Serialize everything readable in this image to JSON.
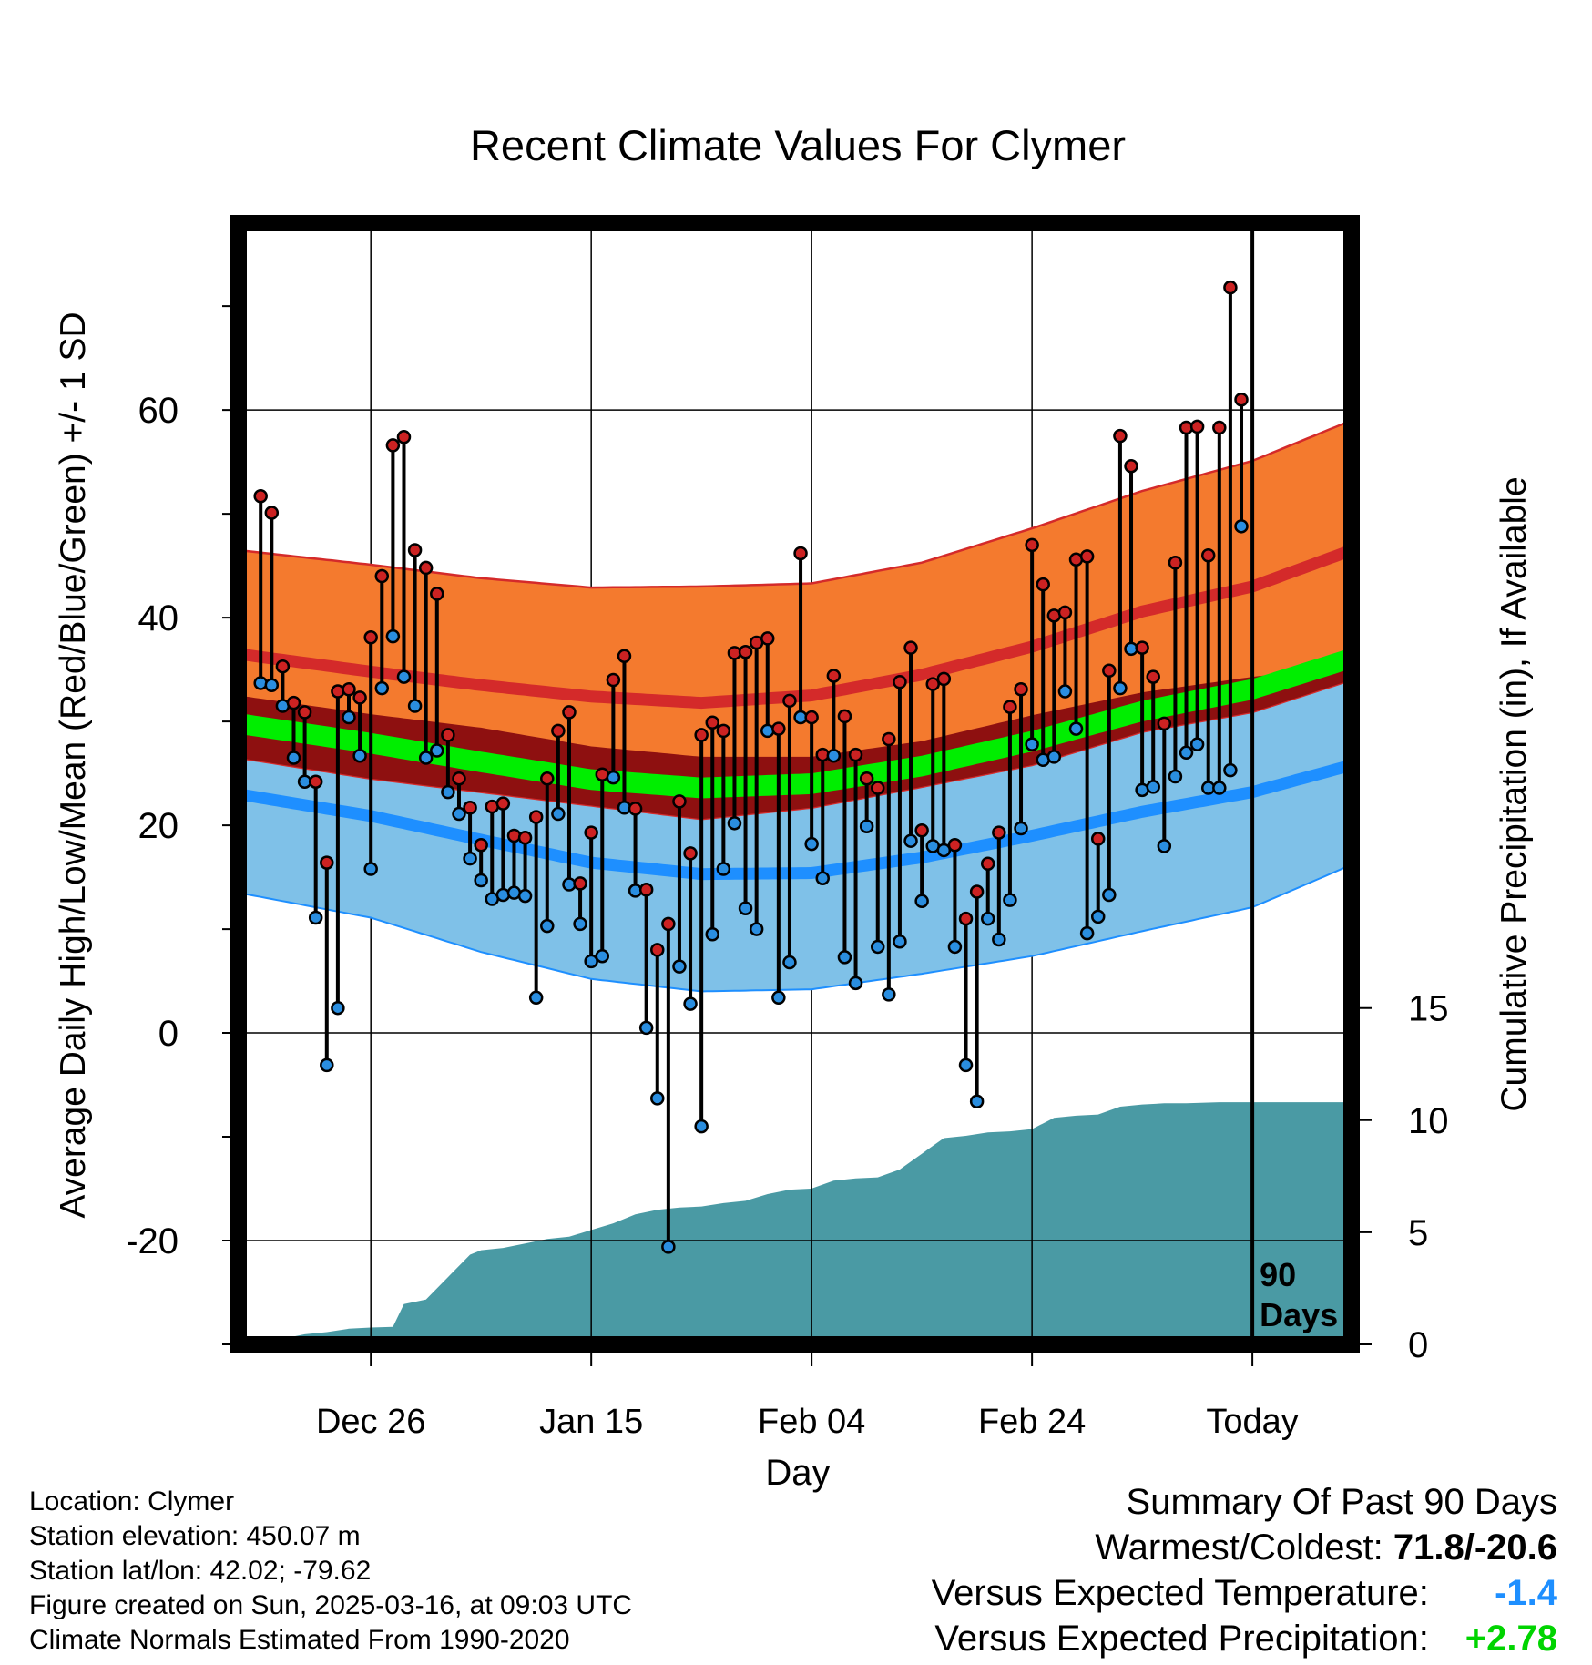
{
  "chart_data": {
    "type": "line",
    "title": "Recent Climate Values For Clymer",
    "xlabel": "Day",
    "ylabel": "Average Daily High/Low/Mean (Red/Blue/Green) +/- 1 SD",
    "y2label": "Cumulative Precipitation (in), If Available",
    "ylim": [
      -30,
      78
    ],
    "y2lim": [
      0,
      50
    ],
    "xlim": [
      -92,
      9
    ],
    "x_unit": "days relative to Today (Mar 16)",
    "x_ticks": [
      {
        "x": -80,
        "label": "Dec 26"
      },
      {
        "x": -60,
        "label": "Jan 15"
      },
      {
        "x": -40,
        "label": "Feb 04"
      },
      {
        "x": -20,
        "label": "Feb 24"
      },
      {
        "x": 0,
        "label": "Today"
      }
    ],
    "y_ticks": [
      -20,
      0,
      20,
      40,
      60
    ],
    "y2_ticks": [
      0,
      5,
      10,
      15
    ],
    "marker_label": "90 Days",
    "marker_x": 0,
    "grid": true,
    "highs": [
      51.7,
      50.1,
      35.3,
      31.8,
      30.9,
      24.2,
      16.4,
      32.9,
      33.1,
      32.3,
      38.1,
      44.0,
      56.6,
      57.4,
      46.5,
      44.8,
      42.3,
      28.7,
      24.5,
      21.7,
      18.1,
      21.8,
      22.1,
      19.0,
      18.8,
      20.8,
      24.5,
      29.1,
      30.9,
      14.4,
      19.3,
      24.9,
      34.0,
      36.3,
      21.6,
      13.8,
      8.0,
      10.5,
      22.3,
      17.3,
      28.7,
      29.9,
      29.1,
      36.6,
      36.7,
      37.6,
      38.0,
      29.3,
      32.0,
      46.2,
      30.4,
      26.8,
      34.4,
      30.5,
      26.8,
      24.5,
      23.6,
      28.3,
      33.8,
      37.1,
      19.5,
      33.6,
      34.1,
      18.1,
      11.0,
      13.6,
      16.3,
      19.3,
      31.4,
      33.1,
      47.0,
      43.2,
      40.2,
      40.5,
      45.6,
      45.9,
      18.7,
      34.9,
      57.5,
      54.6,
      37.1,
      34.3,
      29.8,
      45.3,
      58.3,
      58.4,
      46.0,
      58.3,
      71.8,
      61.0
    ],
    "lows": [
      33.7,
      33.5,
      31.5,
      26.5,
      24.2,
      11.1,
      -3.1,
      2.4,
      30.4,
      26.7,
      15.8,
      33.2,
      38.2,
      34.3,
      31.5,
      26.5,
      27.2,
      23.2,
      21.1,
      16.8,
      14.7,
      12.9,
      13.3,
      13.5,
      13.2,
      3.4,
      10.3,
      21.1,
      14.3,
      10.5,
      6.9,
      7.4,
      24.6,
      21.7,
      13.7,
      0.5,
      -6.3,
      -20.6,
      6.4,
      2.8,
      -9.0,
      9.5,
      15.8,
      20.2,
      12.0,
      10.0,
      29.1,
      3.4,
      6.8,
      30.4,
      18.2,
      14.9,
      26.7,
      7.3,
      4.8,
      19.9,
      8.3,
      3.7,
      8.8,
      18.5,
      12.7,
      18.0,
      17.6,
      8.3,
      -3.1,
      -6.6,
      11.0,
      9.0,
      12.8,
      19.7,
      27.8,
      26.3,
      26.6,
      32.9,
      29.3,
      9.6,
      11.2,
      13.3,
      33.2,
      37.0,
      23.4,
      23.7,
      18.0,
      24.7,
      27.0,
      27.8,
      23.6,
      23.6,
      25.3,
      48.8
    ],
    "series": [
      {
        "name": "Average Daily High",
        "mean": [
          [
            -92,
            36.5
          ],
          [
            -80,
            34.8
          ],
          [
            -70,
            33.5
          ],
          [
            -60,
            32.4
          ],
          [
            -50,
            31.8
          ],
          [
            -40,
            32.5
          ],
          [
            -30,
            34.5
          ],
          [
            -20,
            37.2
          ],
          [
            -10,
            40.6
          ],
          [
            0,
            43.0
          ],
          [
            9,
            46.5
          ]
        ],
        "sd": [
          [
            -92,
            10.0
          ],
          [
            -80,
            10.3
          ],
          [
            -70,
            10.3
          ],
          [
            -60,
            10.5
          ],
          [
            -50,
            11.2
          ],
          [
            -40,
            10.8
          ],
          [
            -30,
            10.8
          ],
          [
            -20,
            11.4
          ],
          [
            -10,
            11.6
          ],
          [
            0,
            12.1
          ],
          [
            9,
            12.5
          ]
        ]
      },
      {
        "name": "Average Daily Low",
        "mean": [
          [
            -92,
            23.0
          ],
          [
            -80,
            20.9
          ],
          [
            -70,
            18.6
          ],
          [
            -60,
            16.4
          ],
          [
            -50,
            15.3
          ],
          [
            -40,
            15.4
          ],
          [
            -30,
            16.9
          ],
          [
            -20,
            19.0
          ],
          [
            -10,
            21.3
          ],
          [
            0,
            23.2
          ],
          [
            9,
            25.8
          ]
        ],
        "sd": [
          [
            -92,
            9.5
          ],
          [
            -80,
            9.8
          ],
          [
            -70,
            10.8
          ],
          [
            -60,
            11.2
          ],
          [
            -50,
            11.3
          ],
          [
            -40,
            11.2
          ],
          [
            -30,
            11.2
          ],
          [
            -20,
            11.6
          ],
          [
            -10,
            11.5
          ],
          [
            0,
            11.1
          ],
          [
            9,
            9.6
          ]
        ]
      },
      {
        "name": "Average Daily Mean",
        "mean": [
          [
            -92,
            29.8
          ],
          [
            -80,
            27.9
          ],
          [
            -70,
            26.1
          ],
          [
            -60,
            24.4
          ],
          [
            -50,
            23.6
          ],
          [
            -40,
            24.0
          ],
          [
            -30,
            25.7
          ],
          [
            -20,
            28.1
          ],
          [
            -10,
            31.0
          ],
          [
            0,
            33.1
          ],
          [
            9,
            36.1
          ]
        ],
        "sd": [
          [
            -92,
            1.0
          ],
          [
            -80,
            1.0
          ],
          [
            -70,
            1.0
          ],
          [
            -60,
            1.0
          ],
          [
            -50,
            1.0
          ],
          [
            -40,
            1.0
          ],
          [
            -30,
            1.0
          ],
          [
            -20,
            1.0
          ],
          [
            -10,
            1.0
          ],
          [
            0,
            1.0
          ],
          [
            9,
            1.0
          ]
        ]
      }
    ],
    "precip_cum": [
      [
        -92,
        0.0
      ],
      [
        -90,
        0.0
      ],
      [
        -88,
        0.25
      ],
      [
        -86,
        0.45
      ],
      [
        -84,
        0.55
      ],
      [
        -82,
        0.7
      ],
      [
        -80,
        0.75
      ],
      [
        -78,
        0.78
      ],
      [
        -77,
        1.8
      ],
      [
        -75,
        2.0
      ],
      [
        -73,
        3.0
      ],
      [
        -71,
        4.0
      ],
      [
        -70,
        4.2
      ],
      [
        -68,
        4.3
      ],
      [
        -66,
        4.5
      ],
      [
        -64,
        4.7
      ],
      [
        -62,
        4.8
      ],
      [
        -60,
        5.1
      ],
      [
        -58,
        5.4
      ],
      [
        -56,
        5.8
      ],
      [
        -54,
        6.0
      ],
      [
        -52,
        6.1
      ],
      [
        -50,
        6.15
      ],
      [
        -48,
        6.3
      ],
      [
        -46,
        6.4
      ],
      [
        -44,
        6.7
      ],
      [
        -42,
        6.9
      ],
      [
        -40,
        6.95
      ],
      [
        -38,
        7.3
      ],
      [
        -36,
        7.4
      ],
      [
        -34,
        7.45
      ],
      [
        -32,
        7.8
      ],
      [
        -30,
        8.5
      ],
      [
        -28,
        9.2
      ],
      [
        -26,
        9.3
      ],
      [
        -24,
        9.45
      ],
      [
        -22,
        9.5
      ],
      [
        -20,
        9.6
      ],
      [
        -18,
        10.1
      ],
      [
        -16,
        10.2
      ],
      [
        -14,
        10.25
      ],
      [
        -12,
        10.6
      ],
      [
        -10,
        10.7
      ],
      [
        -8,
        10.75
      ],
      [
        -6,
        10.75
      ],
      [
        -3,
        10.8
      ],
      [
        0,
        10.8
      ],
      [
        9,
        10.8
      ]
    ]
  },
  "info": {
    "location": "Location: Clymer",
    "elevation": "Station elevation: 450.07 m",
    "latlon": "Station lat/lon: 42.02; -79.62",
    "created": "Figure created on Sun, 2025-03-16, at 09:03 UTC",
    "normals": "Climate Normals Estimated From 1990-2020"
  },
  "summary": {
    "heading": "Summary Of Past 90 Days",
    "warm_cold_label": "Warmest/Coldest:",
    "warm_cold_value": "71.8/-20.6",
    "temp_label": "Versus Expected Temperature:",
    "temp_value": "-1.4",
    "precip_label": "Versus Expected Precipitation:",
    "precip_value": "+2.78"
  },
  "colors": {
    "high_band": "#f47a2e",
    "high_mean": "#d42a2a",
    "mean_band": "#8e1010",
    "mean_line": "#00ee00",
    "low_band": "#7fc1e8",
    "low_mean": "#1e8fff",
    "precip": "#4a9aa4",
    "high_marker": "#cc2222",
    "low_marker": "#2a8ee0"
  }
}
